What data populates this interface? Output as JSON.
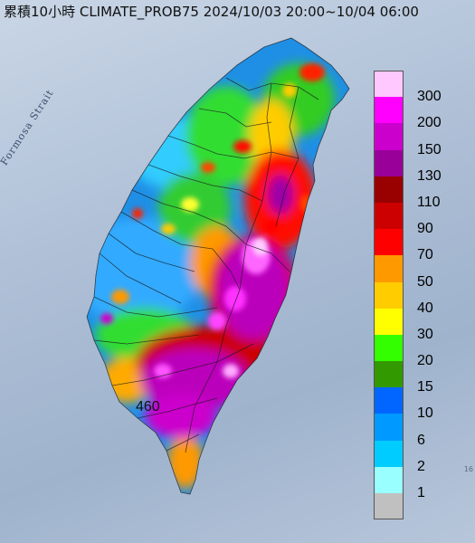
{
  "title": "累積10小時 CLIMATE_PROB75 2024/10/03 20:00~10/04 06:00",
  "map_labels": {
    "strait": "Formosa Strait",
    "max_value": "460",
    "edge_fragment": "16"
  },
  "legend": {
    "items": [
      {
        "label": "300",
        "color": "#ffc8ff"
      },
      {
        "label": "200",
        "color": "#ff00ff"
      },
      {
        "label": "150",
        "color": "#cc00cc"
      },
      {
        "label": "130",
        "color": "#990099"
      },
      {
        "label": "110",
        "color": "#990000"
      },
      {
        "label": "90",
        "color": "#cc0000"
      },
      {
        "label": "70",
        "color": "#ff0000"
      },
      {
        "label": "50",
        "color": "#ff9900"
      },
      {
        "label": "40",
        "color": "#ffcc00"
      },
      {
        "label": "30",
        "color": "#ffff00"
      },
      {
        "label": "20",
        "color": "#33ff00"
      },
      {
        "label": "15",
        "color": "#339900"
      },
      {
        "label": "10",
        "color": "#0066ff"
      },
      {
        "label": "6",
        "color": "#0099ff"
      },
      {
        "label": "2",
        "color": "#00ccff"
      },
      {
        "label": "1",
        "color": "#99ffff"
      },
      {
        "label": "",
        "color": "#c0c0c0"
      }
    ]
  }
}
